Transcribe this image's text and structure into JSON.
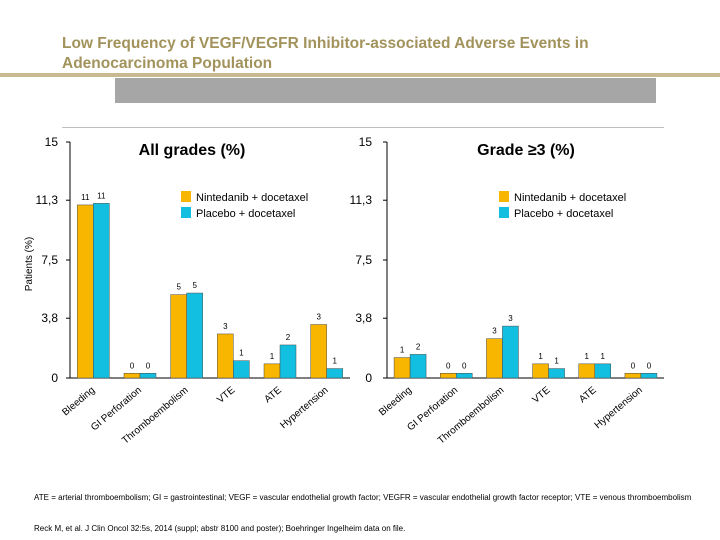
{
  "slide": {
    "title_line1": "Low Frequency of VEGF/VEGFR Inhibitor-associated Adverse Events in",
    "title_line2": "Adenocarcinoma Population",
    "footnote": "ATE = arterial thromboembolism; GI = gastrointestinal; VEGF = vascular endothelial growth factor; VEGFR = vascular endothelial growth factor receptor; VTE = venous thromboembolism",
    "reference": "Reck M, et al. J Clin Oncol 32:5s, 2014 (suppl; abstr 8100 and poster); Boehringer Ingelheim data on file."
  },
  "colors": {
    "title": "#a2925b",
    "underline": "#c8b992",
    "banner": "#a6a6a6",
    "rule": "#bfbfbf",
    "nintedanib": "#f8b600",
    "placebo": "#12bfe0",
    "bar_edge": "#4a4a4a"
  },
  "chart_data": [
    {
      "type": "bar",
      "title": "All grades (%)",
      "ylabel": "Patients (%)",
      "ylim": [
        0,
        15
      ],
      "yticks": [
        0,
        3.8,
        7.5,
        11.3,
        15
      ],
      "ytick_labels": [
        "0",
        "3,8",
        "7,5",
        "11,3",
        "15"
      ],
      "categories": [
        "Bleeding",
        "GI Perforation",
        "Thromboembolism",
        "VTE",
        "ATE",
        "Hypertension"
      ],
      "series": [
        {
          "name": "Nintedanib + docetaxel",
          "color_key": "nintedanib",
          "values": [
            11,
            0.3,
            5.3,
            2.8,
            0.9,
            3.4
          ],
          "labels": [
            "11",
            "0",
            "5",
            "3",
            "1",
            "3"
          ]
        },
        {
          "name": "Placebo + docetaxel",
          "color_key": "placebo",
          "values": [
            11.1,
            0.3,
            5.4,
            1.1,
            2.1,
            0.6
          ],
          "labels": [
            "11",
            "0",
            "5",
            "1",
            "2",
            "1"
          ]
        }
      ],
      "legend": "upper-right"
    },
    {
      "type": "bar",
      "title": "Grade ≥3 (%)",
      "ylabel": "",
      "ylim": [
        0,
        15
      ],
      "yticks": [
        0,
        3.8,
        7.5,
        11.3,
        15
      ],
      "ytick_labels": [
        "0",
        "3,8",
        "7,5",
        "11,3",
        "15"
      ],
      "categories": [
        "Bleeding",
        "GI Perforation",
        "Thromboembolism",
        "VTE",
        "ATE",
        "Hypertension"
      ],
      "series": [
        {
          "name": "Nintedanib + docetaxel",
          "color_key": "nintedanib",
          "values": [
            1.3,
            0.3,
            2.5,
            0.9,
            0.9,
            0.3
          ],
          "labels": [
            "1",
            "0",
            "3",
            "1",
            "1",
            "0"
          ]
        },
        {
          "name": "Placebo + docetaxel",
          "color_key": "placebo",
          "values": [
            1.5,
            0.3,
            3.3,
            0.6,
            0.9,
            0.3
          ],
          "labels": [
            "2",
            "0",
            "3",
            "1",
            "1",
            "0"
          ]
        }
      ],
      "legend": "upper-right"
    }
  ]
}
